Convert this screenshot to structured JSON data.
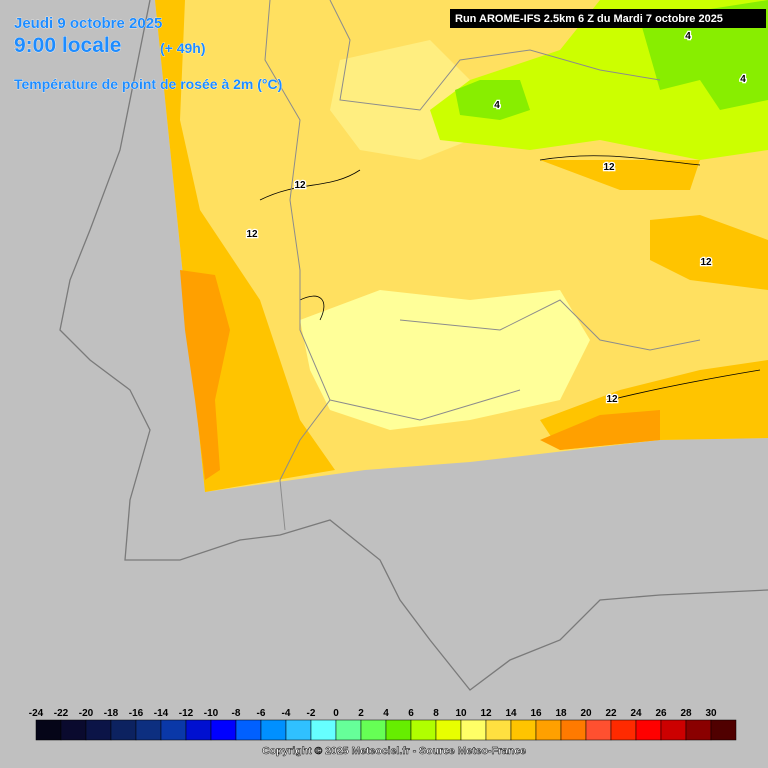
{
  "header": {
    "date": "Jeudi 9 octobre 2025",
    "time": "9:00 locale",
    "lead": "(+ 49h)",
    "parameter": "Température de point de rosée à 2m (°C)",
    "run": "Run AROME-IFS 2.5km 6 Z du Mardi 7 octobre 2025"
  },
  "contour_labels": [
    4,
    4,
    4,
    12,
    12,
    12,
    12,
    12
  ],
  "legend": {
    "values": [
      -24,
      -22,
      -20,
      -18,
      -16,
      -14,
      -12,
      -10,
      -8,
      -6,
      -4,
      -2,
      0,
      2,
      4,
      6,
      8,
      10,
      12,
      14,
      16,
      18,
      20,
      22,
      24,
      26,
      28,
      30
    ],
    "colors": [
      "#050518",
      "#0a0a2e",
      "#0b1447",
      "#0c2260",
      "#0d2f80",
      "#0a38a8",
      "#0010d0",
      "#0000ff",
      "#0060ff",
      "#0090ff",
      "#30c0ff",
      "#66ffff",
      "#66ff99",
      "#66ff55",
      "#66ee00",
      "#b0ff00",
      "#e8ff00",
      "#ffff66",
      "#ffe040",
      "#ffc400",
      "#ffa000",
      "#ff7a00",
      "#ff5030",
      "#ff2a00",
      "#ff0000",
      "#cc0000",
      "#8a0000",
      "#500000"
    ]
  },
  "footer": {
    "copyright": "Copyright © 2025 Meteociel.fr - Source Meteo-France"
  }
}
